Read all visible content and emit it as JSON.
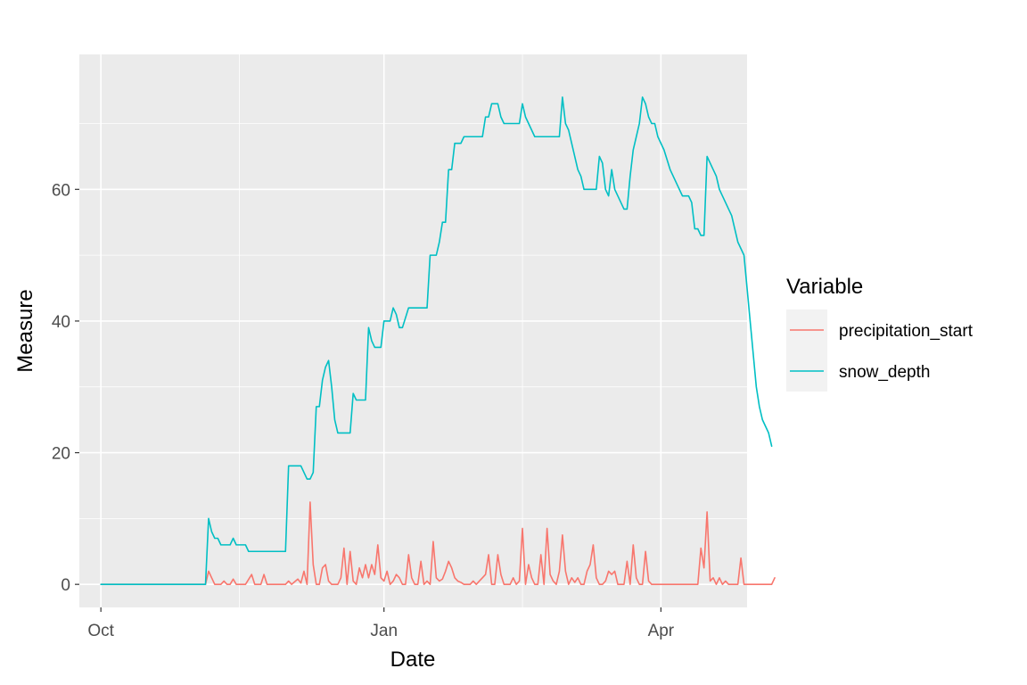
{
  "chart_data": {
    "type": "line",
    "xlabel": "Date",
    "ylabel": "Measure",
    "x_ticks": [
      {
        "date": "2021-10-01",
        "label": "Oct"
      },
      {
        "date": "2022-01-01",
        "label": "Jan"
      },
      {
        "date": "2022-04-01",
        "label": "Apr"
      }
    ],
    "x_minor_grid": [
      "2021-11-15",
      "2022-02-15"
    ],
    "xlim": [
      "2021-09-24",
      "2022-04-29"
    ],
    "ylim": [
      -3.5,
      80.5
    ],
    "y_ticks": [
      0,
      20,
      40,
      60
    ],
    "y_minor_grid": [
      10,
      30,
      50,
      70
    ],
    "grid": true,
    "legend": {
      "title": "Variable",
      "placement": "right",
      "entries": [
        {
          "label": "precipitation_start",
          "color": "#F8766D"
        },
        {
          "label": "snow_depth",
          "color": "#00BFC4"
        }
      ]
    },
    "series": [
      {
        "name": "precipitation_start",
        "color": "#F8766D",
        "points": [
          [
            "2021-10-01",
            0
          ],
          [
            "2021-11-04",
            0
          ],
          [
            "2021-11-05",
            2
          ],
          [
            "2021-11-06",
            1
          ],
          [
            "2021-11-07",
            0
          ],
          [
            "2021-11-09",
            0
          ],
          [
            "2021-11-10",
            0.5
          ],
          [
            "2021-11-11",
            0
          ],
          [
            "2021-11-12",
            0
          ],
          [
            "2021-11-13",
            0.8
          ],
          [
            "2021-11-14",
            0
          ],
          [
            "2021-11-16",
            0
          ],
          [
            "2021-11-17",
            0
          ],
          [
            "2021-11-19",
            1.5
          ],
          [
            "2021-11-20",
            0
          ],
          [
            "2021-11-22",
            0
          ],
          [
            "2021-11-23",
            1.5
          ],
          [
            "2021-11-24",
            0
          ],
          [
            "2021-11-30",
            0
          ],
          [
            "2021-12-01",
            0.5
          ],
          [
            "2021-12-02",
            0
          ],
          [
            "2021-12-04",
            0.8
          ],
          [
            "2021-12-05",
            0.2
          ],
          [
            "2021-12-06",
            2
          ],
          [
            "2021-12-07",
            0
          ],
          [
            "2021-12-08",
            12.5
          ],
          [
            "2021-12-09",
            3
          ],
          [
            "2021-12-10",
            0
          ],
          [
            "2021-12-11",
            0
          ],
          [
            "2021-12-12",
            2.5
          ],
          [
            "2021-12-13",
            3
          ],
          [
            "2021-12-14",
            0.5
          ],
          [
            "2021-12-15",
            0
          ],
          [
            "2021-12-17",
            0
          ],
          [
            "2021-12-18",
            1
          ],
          [
            "2021-12-19",
            5.5
          ],
          [
            "2021-12-20",
            0
          ],
          [
            "2021-12-21",
            5
          ],
          [
            "2021-12-22",
            0.5
          ],
          [
            "2021-12-23",
            0
          ],
          [
            "2021-12-24",
            2.5
          ],
          [
            "2021-12-25",
            1
          ],
          [
            "2021-12-26",
            3
          ],
          [
            "2021-12-27",
            1
          ],
          [
            "2021-12-28",
            3
          ],
          [
            "2021-12-29",
            1.5
          ],
          [
            "2021-12-30",
            6
          ],
          [
            "2021-12-31",
            1
          ],
          [
            "2022-01-01",
            0.5
          ],
          [
            "2022-01-02",
            2
          ],
          [
            "2022-01-03",
            0
          ],
          [
            "2022-01-04",
            0.5
          ],
          [
            "2022-01-05",
            1.5
          ],
          [
            "2022-01-06",
            1
          ],
          [
            "2022-01-07",
            0
          ],
          [
            "2022-01-08",
            0
          ],
          [
            "2022-01-09",
            4.5
          ],
          [
            "2022-01-10",
            1
          ],
          [
            "2022-01-11",
            0
          ],
          [
            "2022-01-12",
            0
          ],
          [
            "2022-01-13",
            3.5
          ],
          [
            "2022-01-14",
            0
          ],
          [
            "2022-01-15",
            0.5
          ],
          [
            "2022-01-16",
            0
          ],
          [
            "2022-01-17",
            6.5
          ],
          [
            "2022-01-18",
            1
          ],
          [
            "2022-01-19",
            0.5
          ],
          [
            "2022-01-20",
            0.8
          ],
          [
            "2022-01-21",
            2
          ],
          [
            "2022-01-22",
            3.5
          ],
          [
            "2022-01-23",
            2.5
          ],
          [
            "2022-01-24",
            1
          ],
          [
            "2022-01-25",
            0.5
          ],
          [
            "2022-01-26",
            0.3
          ],
          [
            "2022-01-27",
            0
          ],
          [
            "2022-01-29",
            0
          ],
          [
            "2022-01-30",
            0.5
          ],
          [
            "2022-01-31",
            0
          ],
          [
            "2022-02-01",
            0.5
          ],
          [
            "2022-02-02",
            1
          ],
          [
            "2022-02-03",
            1.5
          ],
          [
            "2022-02-04",
            4.5
          ],
          [
            "2022-02-05",
            0
          ],
          [
            "2022-02-06",
            0
          ],
          [
            "2022-02-07",
            4.5
          ],
          [
            "2022-02-08",
            1.5
          ],
          [
            "2022-02-09",
            0
          ],
          [
            "2022-02-11",
            0
          ],
          [
            "2022-02-12",
            1
          ],
          [
            "2022-02-13",
            0
          ],
          [
            "2022-02-14",
            0.5
          ],
          [
            "2022-02-15",
            8.5
          ],
          [
            "2022-02-16",
            0
          ],
          [
            "2022-02-17",
            3
          ],
          [
            "2022-02-18",
            1
          ],
          [
            "2022-02-19",
            0
          ],
          [
            "2022-02-20",
            0
          ],
          [
            "2022-02-21",
            4.5
          ],
          [
            "2022-02-22",
            0
          ],
          [
            "2022-02-23",
            8.5
          ],
          [
            "2022-02-24",
            1.5
          ],
          [
            "2022-02-25",
            0.5
          ],
          [
            "2022-02-26",
            0
          ],
          [
            "2022-02-27",
            2
          ],
          [
            "2022-02-28",
            7.5
          ],
          [
            "2022-03-01",
            2
          ],
          [
            "2022-03-02",
            0
          ],
          [
            "2022-03-03",
            1
          ],
          [
            "2022-03-04",
            0.3
          ],
          [
            "2022-03-05",
            1
          ],
          [
            "2022-03-06",
            0
          ],
          [
            "2022-03-07",
            0
          ],
          [
            "2022-03-08",
            2
          ],
          [
            "2022-03-09",
            3
          ],
          [
            "2022-03-10",
            6
          ],
          [
            "2022-03-11",
            1
          ],
          [
            "2022-03-12",
            0
          ],
          [
            "2022-03-13",
            0
          ],
          [
            "2022-03-14",
            0.5
          ],
          [
            "2022-03-15",
            2
          ],
          [
            "2022-03-16",
            1.5
          ],
          [
            "2022-03-17",
            2
          ],
          [
            "2022-03-18",
            0
          ],
          [
            "2022-03-19",
            0
          ],
          [
            "2022-03-20",
            0
          ],
          [
            "2022-03-21",
            3.5
          ],
          [
            "2022-03-22",
            0
          ],
          [
            "2022-03-23",
            6
          ],
          [
            "2022-03-24",
            1
          ],
          [
            "2022-03-25",
            0
          ],
          [
            "2022-03-26",
            0
          ],
          [
            "2022-03-27",
            5
          ],
          [
            "2022-03-28",
            0.5
          ],
          [
            "2022-03-29",
            0
          ],
          [
            "2022-04-01",
            0
          ],
          [
            "2022-04-13",
            0
          ],
          [
            "2022-04-14",
            5.5
          ],
          [
            "2022-04-15",
            2.5
          ],
          [
            "2022-04-16",
            11
          ],
          [
            "2022-04-17",
            0.5
          ],
          [
            "2022-04-18",
            1
          ],
          [
            "2022-04-19",
            0
          ],
          [
            "2022-04-20",
            1
          ],
          [
            "2022-04-21",
            0
          ],
          [
            "2022-04-22",
            0.5
          ],
          [
            "2022-04-23",
            0
          ],
          [
            "2022-04-26",
            0
          ],
          [
            "2022-04-27",
            4
          ],
          [
            "2022-04-28",
            0
          ],
          [
            "2022-05-07",
            0
          ],
          [
            "2022-05-08",
            1
          ]
        ]
      },
      {
        "name": "snow_depth",
        "color": "#00BFC4",
        "points": [
          [
            "2021-10-01",
            0
          ],
          [
            "2021-11-04",
            0
          ],
          [
            "2021-11-05",
            10
          ],
          [
            "2021-11-06",
            8
          ],
          [
            "2021-11-07",
            7
          ],
          [
            "2021-11-08",
            7
          ],
          [
            "2021-11-09",
            6
          ],
          [
            "2021-11-12",
            6
          ],
          [
            "2021-11-13",
            7
          ],
          [
            "2021-11-14",
            6
          ],
          [
            "2021-11-17",
            6
          ],
          [
            "2021-11-18",
            5
          ],
          [
            "2021-11-30",
            5
          ],
          [
            "2021-12-01",
            18
          ],
          [
            "2021-12-05",
            18
          ],
          [
            "2021-12-07",
            16
          ],
          [
            "2021-12-08",
            16
          ],
          [
            "2021-12-09",
            17
          ],
          [
            "2021-12-10",
            27
          ],
          [
            "2021-12-11",
            27
          ],
          [
            "2021-12-12",
            31
          ],
          [
            "2021-12-13",
            33
          ],
          [
            "2021-12-14",
            34
          ],
          [
            "2021-12-15",
            30
          ],
          [
            "2021-12-16",
            25
          ],
          [
            "2021-12-17",
            23
          ],
          [
            "2021-12-21",
            23
          ],
          [
            "2021-12-22",
            29
          ],
          [
            "2021-12-23",
            28
          ],
          [
            "2021-12-26",
            28
          ],
          [
            "2021-12-27",
            39
          ],
          [
            "2021-12-28",
            37
          ],
          [
            "2021-12-29",
            36
          ],
          [
            "2021-12-31",
            36
          ],
          [
            "2022-01-01",
            40
          ],
          [
            "2022-01-03",
            40
          ],
          [
            "2022-01-04",
            42
          ],
          [
            "2022-01-05",
            41
          ],
          [
            "2022-01-06",
            39
          ],
          [
            "2022-01-07",
            39
          ],
          [
            "2022-01-09",
            42
          ],
          [
            "2022-01-15",
            42
          ],
          [
            "2022-01-16",
            50
          ],
          [
            "2022-01-18",
            50
          ],
          [
            "2022-01-19",
            52
          ],
          [
            "2022-01-20",
            55
          ],
          [
            "2022-01-21",
            55
          ],
          [
            "2022-01-22",
            63
          ],
          [
            "2022-01-23",
            63
          ],
          [
            "2022-01-24",
            67
          ],
          [
            "2022-01-26",
            67
          ],
          [
            "2022-01-27",
            68
          ],
          [
            "2022-02-02",
            68
          ],
          [
            "2022-02-03",
            71
          ],
          [
            "2022-02-04",
            71
          ],
          [
            "2022-02-05",
            73
          ],
          [
            "2022-02-07",
            73
          ],
          [
            "2022-02-08",
            71
          ],
          [
            "2022-02-09",
            70
          ],
          [
            "2022-02-14",
            70
          ],
          [
            "2022-02-15",
            73
          ],
          [
            "2022-02-16",
            71
          ],
          [
            "2022-02-17",
            70
          ],
          [
            "2022-02-18",
            69
          ],
          [
            "2022-02-19",
            68
          ],
          [
            "2022-02-27",
            68
          ],
          [
            "2022-02-28",
            74
          ],
          [
            "2022-03-01",
            70
          ],
          [
            "2022-03-02",
            69
          ],
          [
            "2022-03-03",
            67
          ],
          [
            "2022-03-04",
            65
          ],
          [
            "2022-03-05",
            63
          ],
          [
            "2022-03-06",
            62
          ],
          [
            "2022-03-07",
            60
          ],
          [
            "2022-03-11",
            60
          ],
          [
            "2022-03-12",
            65
          ],
          [
            "2022-03-13",
            64
          ],
          [
            "2022-03-14",
            60
          ],
          [
            "2022-03-15",
            59
          ],
          [
            "2022-03-16",
            63
          ],
          [
            "2022-03-17",
            60
          ],
          [
            "2022-03-18",
            59
          ],
          [
            "2022-03-19",
            58
          ],
          [
            "2022-03-20",
            57
          ],
          [
            "2022-03-21",
            57
          ],
          [
            "2022-03-22",
            62
          ],
          [
            "2022-03-23",
            66
          ],
          [
            "2022-03-24",
            68
          ],
          [
            "2022-03-25",
            70
          ],
          [
            "2022-03-26",
            74
          ],
          [
            "2022-03-27",
            73
          ],
          [
            "2022-03-28",
            71
          ],
          [
            "2022-03-29",
            70
          ],
          [
            "2022-03-30",
            70
          ],
          [
            "2022-03-31",
            68
          ],
          [
            "2022-04-02",
            66
          ],
          [
            "2022-04-04",
            63
          ],
          [
            "2022-04-06",
            61
          ],
          [
            "2022-04-07",
            60
          ],
          [
            "2022-04-08",
            59
          ],
          [
            "2022-04-10",
            59
          ],
          [
            "2022-04-11",
            58
          ],
          [
            "2022-04-12",
            54
          ],
          [
            "2022-04-13",
            54
          ],
          [
            "2022-04-14",
            53
          ],
          [
            "2022-04-15",
            53
          ],
          [
            "2022-04-16",
            65
          ],
          [
            "2022-04-17",
            64
          ],
          [
            "2022-04-18",
            63
          ],
          [
            "2022-04-19",
            62
          ],
          [
            "2022-04-20",
            60
          ],
          [
            "2022-04-21",
            59
          ],
          [
            "2022-04-22",
            58
          ],
          [
            "2022-04-23",
            57
          ],
          [
            "2022-04-24",
            56
          ],
          [
            "2022-04-25",
            54
          ],
          [
            "2022-04-26",
            52
          ],
          [
            "2022-04-27",
            51
          ],
          [
            "2022-04-28",
            50
          ],
          [
            "2022-04-29",
            45
          ],
          [
            "2022-04-30",
            40
          ],
          [
            "2022-05-01",
            35
          ],
          [
            "2022-05-02",
            30
          ],
          [
            "2022-05-03",
            27
          ],
          [
            "2022-05-04",
            25
          ],
          [
            "2022-05-05",
            24
          ],
          [
            "2022-05-06",
            23
          ],
          [
            "2022-05-07",
            21
          ]
        ]
      }
    ]
  }
}
